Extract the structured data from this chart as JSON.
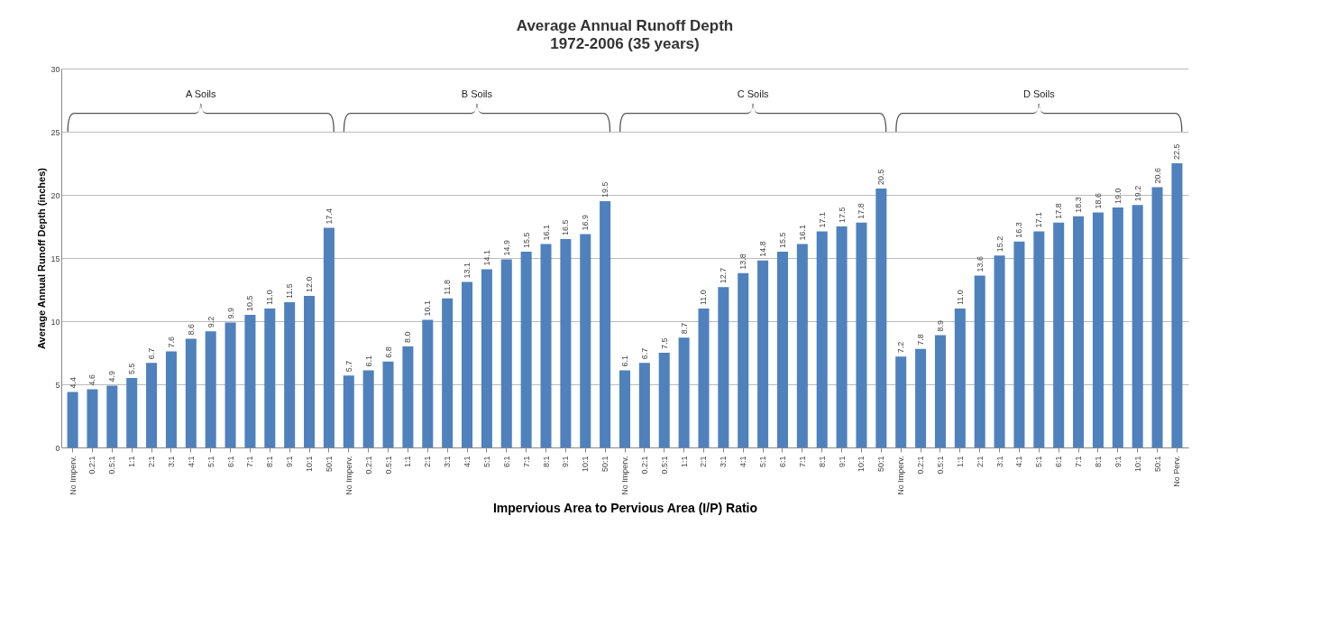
{
  "chart_data": {
    "type": "bar",
    "title": "Average Annual Runoff Depth",
    "subtitle": "1972-2006 (35 years)",
    "xlabel": "Impervious Area to Pervious Area (I/P) Ratio",
    "ylabel": "Average Annual Runoff Depth (inches)",
    "categories": [
      "No Imperv.",
      "0.2:1",
      "0.5:1",
      "1:1",
      "2:1",
      "3:1",
      "4:1",
      "5:1",
      "6:1",
      "7:1",
      "8:1",
      "9:1",
      "10:1",
      "50:1",
      "No Imperv.",
      "0.2:1",
      "0.5:1",
      "1:1",
      "2:1",
      "3:1",
      "4:1",
      "5:1",
      "6:1",
      "7:1",
      "8:1",
      "9:1",
      "10:1",
      "50:1",
      "No Imperv.",
      "0.2:1",
      "0.5:1",
      "1:1",
      "2:1",
      "3:1",
      "4:1",
      "5:1",
      "6:1",
      "7:1",
      "8:1",
      "9:1",
      "10:1",
      "50:1",
      "No Imperv.",
      "0.2:1",
      "0.5:1",
      "1:1",
      "2:1",
      "3:1",
      "4:1",
      "5:1",
      "6:1",
      "7:1",
      "8:1",
      "9:1",
      "10:1",
      "50:1",
      "No Perv."
    ],
    "values": [
      4.4,
      4.6,
      4.9,
      5.5,
      6.7,
      7.6,
      8.6,
      9.2,
      9.9,
      10.5,
      11.0,
      11.5,
      12.0,
      17.4,
      5.7,
      6.1,
      6.8,
      8.0,
      10.1,
      11.8,
      13.1,
      14.1,
      14.9,
      15.5,
      16.1,
      16.5,
      16.9,
      19.5,
      6.1,
      6.7,
      7.5,
      8.7,
      11.0,
      12.7,
      13.8,
      14.8,
      15.5,
      16.1,
      17.1,
      17.5,
      17.8,
      20.5,
      7.2,
      7.8,
      8.9,
      11.0,
      13.6,
      15.2,
      16.3,
      17.1,
      17.8,
      18.3,
      18.6,
      19.0,
      19.2,
      20.6,
      22.5
    ],
    "value_labels": [
      "4.4",
      "4.6",
      "4.9",
      "5.5",
      "6.7",
      "7.6",
      "8.6",
      "9.2",
      "9.9",
      "10.5",
      "11.0",
      "11.5",
      "12.0",
      "17.4",
      "5.7",
      "6.1",
      "6.8",
      "8.0",
      "10.1",
      "11.8",
      "13.1",
      "14.1",
      "14.9",
      "15.5",
      "16.1",
      "16.5",
      "16.9",
      "19.5",
      "6.1",
      "6.7",
      "7.5",
      "8.7",
      "11.0",
      "12.7",
      "13.8",
      "14.8",
      "15.5",
      "16.1",
      "17.1",
      "17.5",
      "17.8",
      "20.5",
      "7.2",
      "7.8",
      "8.9",
      "11.0",
      "13.6",
      "15.2",
      "16.3",
      "17.1",
      "17.8",
      "18.3",
      "18.6",
      "19.0",
      "19.2",
      "20.6",
      "22.5"
    ],
    "color": "#4f81bd",
    "ylim": [
      0,
      30
    ],
    "yticks": [
      0,
      5,
      10,
      15,
      20,
      25,
      30
    ],
    "grid": "y",
    "annotations": [
      "A Soils",
      "B Soils",
      "C Soils",
      "D Soils"
    ]
  }
}
